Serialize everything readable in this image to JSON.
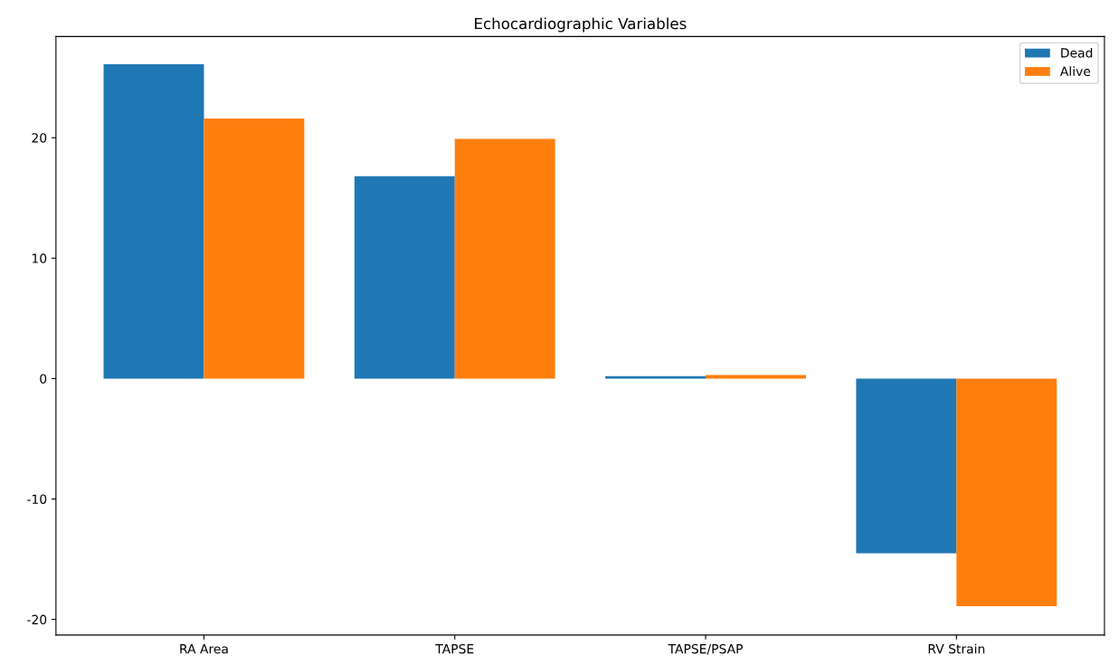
{
  "chart_data": {
    "type": "bar",
    "title": "Echocardiographic Variables",
    "categories": [
      "RA Area",
      "TAPSE",
      "TAPSE/PSAP",
      "RV Strain"
    ],
    "series": [
      {
        "name": "Dead",
        "color": "#1f77b4",
        "values": [
          26.1,
          16.8,
          0.2,
          -14.5
        ]
      },
      {
        "name": "Alive",
        "color": "#ff7f0e",
        "values": [
          21.6,
          19.9,
          0.3,
          -18.9
        ]
      }
    ],
    "ylim": [
      -21.3,
      28.4
    ],
    "yticks": [
      -20,
      -10,
      0,
      10,
      20
    ],
    "grid": false,
    "legend": "top right"
  }
}
